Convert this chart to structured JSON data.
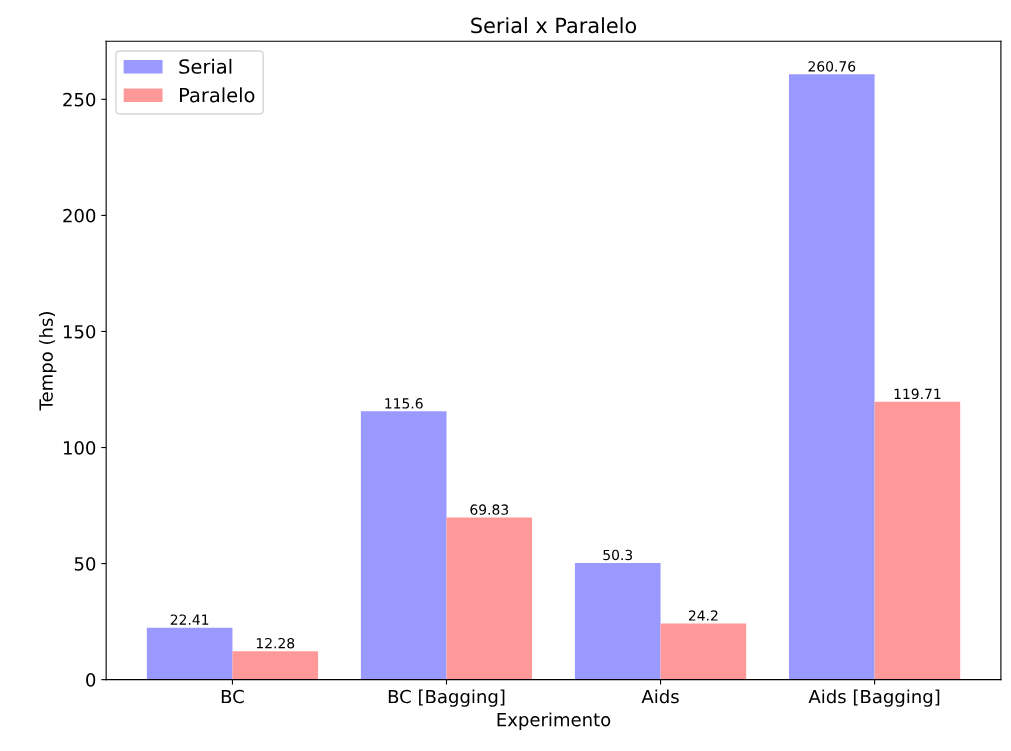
{
  "chart_data": {
    "type": "bar",
    "title": "Serial x Paralelo",
    "xlabel": "Experimento",
    "ylabel": "Tempo (hs)",
    "categories": [
      "BC",
      "BC [Bagging]",
      "Aids",
      "Aids [Bagging]"
    ],
    "series": [
      {
        "name": "Serial",
        "color": "#9999ff",
        "values": [
          22.41,
          115.6,
          50.3,
          260.76
        ]
      },
      {
        "name": "Paralelo",
        "color": "#ff9999",
        "values": [
          12.28,
          69.83,
          24.2,
          119.71
        ]
      }
    ],
    "ylim": [
      0,
      275
    ],
    "yticks": [
      0,
      50,
      100,
      150,
      200,
      250
    ],
    "legend": "top left",
    "data_labels": true
  }
}
